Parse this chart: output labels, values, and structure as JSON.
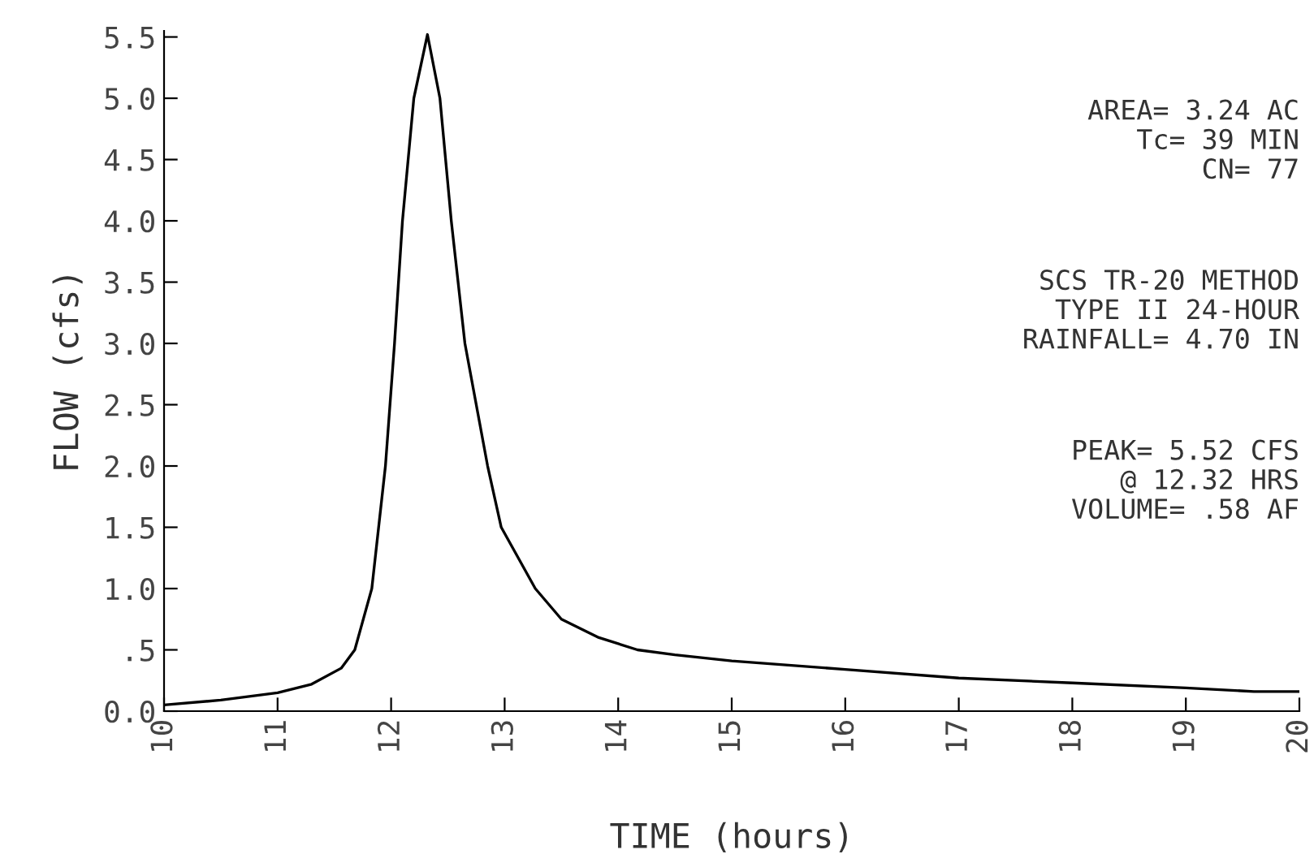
{
  "chart_data": {
    "type": "line",
    "xlabel": "TIME (hours)",
    "ylabel": "FLOW (cfs)",
    "x": [
      10,
      10.5,
      11,
      11.3,
      11.56,
      11.68,
      11.83,
      11.95,
      12.03,
      12.1,
      12.2,
      12.32,
      12.43,
      12.53,
      12.65,
      12.85,
      12.97,
      13.27,
      13.5,
      13.83,
      14.17,
      14.5,
      15,
      16,
      17,
      18,
      19,
      19.6,
      20
    ],
    "values": [
      0.05,
      0.09,
      0.15,
      0.22,
      0.35,
      0.5,
      1.0,
      2.0,
      3.0,
      4.0,
      5.0,
      5.52,
      5.0,
      4.0,
      3.0,
      2.0,
      1.5,
      1.0,
      0.75,
      0.6,
      0.5,
      0.46,
      0.41,
      0.34,
      0.27,
      0.23,
      0.19,
      0.16,
      0.16
    ],
    "color": "#000000",
    "xlim": [
      10,
      20
    ],
    "ylim": [
      0,
      5.55
    ],
    "xticks": [
      10,
      11,
      12,
      13,
      14,
      15,
      16,
      17,
      18,
      19,
      20
    ],
    "yticks": [
      {
        "value": 0,
        "label": "0.0"
      },
      {
        "value": 0.5,
        "label": ".5"
      },
      {
        "value": 1,
        "label": "1.0"
      },
      {
        "value": 1.5,
        "label": "1.5"
      },
      {
        "value": 2,
        "label": "2.0"
      },
      {
        "value": 2.5,
        "label": "2.5"
      },
      {
        "value": 3,
        "label": "3.0"
      },
      {
        "value": 3.5,
        "label": "3.5"
      },
      {
        "value": 4,
        "label": "4.0"
      },
      {
        "value": 4.5,
        "label": "4.5"
      },
      {
        "value": 5,
        "label": "5.0"
      },
      {
        "value": 5.5,
        "label": "5.5"
      }
    ],
    "grid": false,
    "marker": "none",
    "line_style": "solid",
    "annotations": [
      "AREA= 3.24 AC\nTc= 39 MIN\nCN= 77",
      "SCS TR-20 METHOD\nTYPE II 24-HOUR\nRAINFALL= 4.70 IN",
      "PEAK= 5.52 CFS\n@ 12.32 HRS\nVOLUME= .58 AF"
    ]
  }
}
